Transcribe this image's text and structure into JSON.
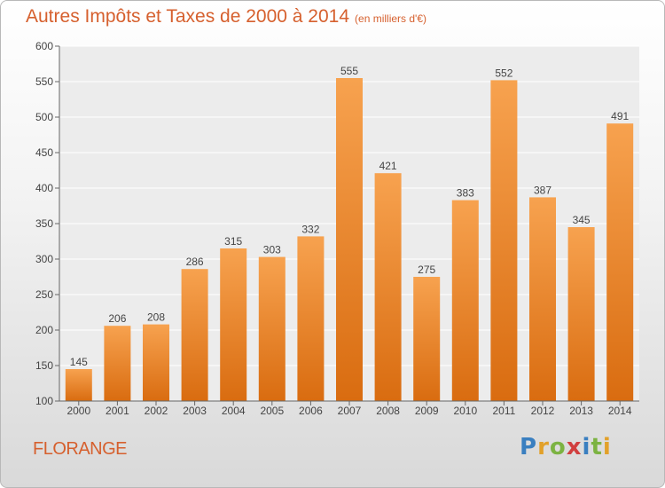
{
  "title": "Autres Impôts et Taxes de 2000 à 2014",
  "subtitle": "(en milliers d'€)",
  "commune": "FLORANGE",
  "brand": {
    "letters": [
      "P",
      "r",
      "o",
      "x",
      "i",
      "t",
      "i"
    ],
    "colors": [
      "#3a7fc0",
      "#e2a12a",
      "#7cb342",
      "#d13f3f",
      "#3a7fc0",
      "#7cb342",
      "#e2a12a"
    ]
  },
  "colors": {
    "accent": "#d6602e",
    "bar_top": "#f7a24f",
    "bar_bottom": "#d96c10"
  },
  "chart_data": {
    "type": "bar",
    "categories": [
      "2000",
      "2001",
      "2002",
      "2003",
      "2004",
      "2005",
      "2006",
      "2007",
      "2008",
      "2009",
      "2010",
      "2011",
      "2012",
      "2013",
      "2014"
    ],
    "values": [
      145,
      206,
      208,
      286,
      315,
      303,
      332,
      555,
      421,
      275,
      383,
      552,
      387,
      345,
      491
    ],
    "ylim": [
      100,
      600
    ],
    "yticks": [
      100,
      150,
      200,
      250,
      300,
      350,
      400,
      450,
      500,
      550,
      600
    ],
    "grid": true
  }
}
